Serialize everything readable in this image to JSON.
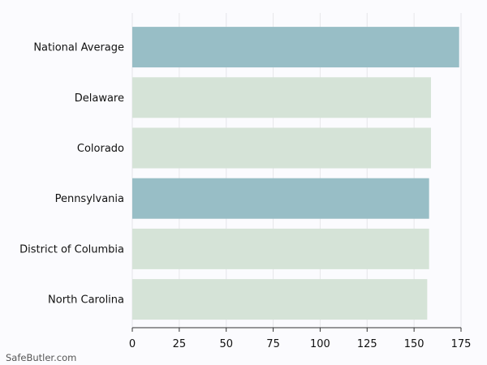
{
  "watermark": "SafeButler.com",
  "chart_data": {
    "type": "bar",
    "orientation": "horizontal",
    "title": "",
    "xlabel": "",
    "ylabel": "",
    "categories": [
      "National Average",
      "Delaware",
      "Colorado",
      "Pennsylvania",
      "District of Columbia",
      "North Carolina"
    ],
    "values": [
      174,
      159,
      159,
      158,
      158,
      157
    ],
    "bar_colors": [
      "#98bec6",
      "#d5e3d7",
      "#d5e3d7",
      "#98bec6",
      "#d5e3d7",
      "#d5e3d7"
    ],
    "xlim": [
      0,
      175
    ],
    "xticks": [
      0,
      25,
      50,
      75,
      100,
      125,
      150,
      175
    ],
    "grid": true
  }
}
